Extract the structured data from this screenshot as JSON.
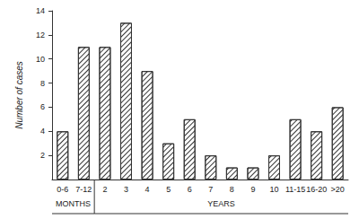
{
  "chart_data": {
    "type": "bar",
    "y_label": "Number of cases",
    "categories": [
      "0-6",
      "7-12",
      "2",
      "3",
      "4",
      "5",
      "6",
      "7",
      "8",
      "9",
      "10",
      "11-15",
      "16-20",
      ">20"
    ],
    "values": [
      4,
      11,
      11,
      13,
      9,
      3,
      5,
      2,
      1,
      1,
      2,
      5,
      4,
      6
    ],
    "color": "#333333",
    "ylim": [
      0,
      14
    ],
    "yticks": [
      2,
      4,
      6,
      8,
      10,
      12,
      14
    ],
    "grid": false,
    "x_groups": [
      {
        "label": "MONTHS",
        "from": "0-6",
        "to": "7-12"
      },
      {
        "label": "YEARS",
        "from": "2",
        "to": ">20"
      }
    ]
  }
}
